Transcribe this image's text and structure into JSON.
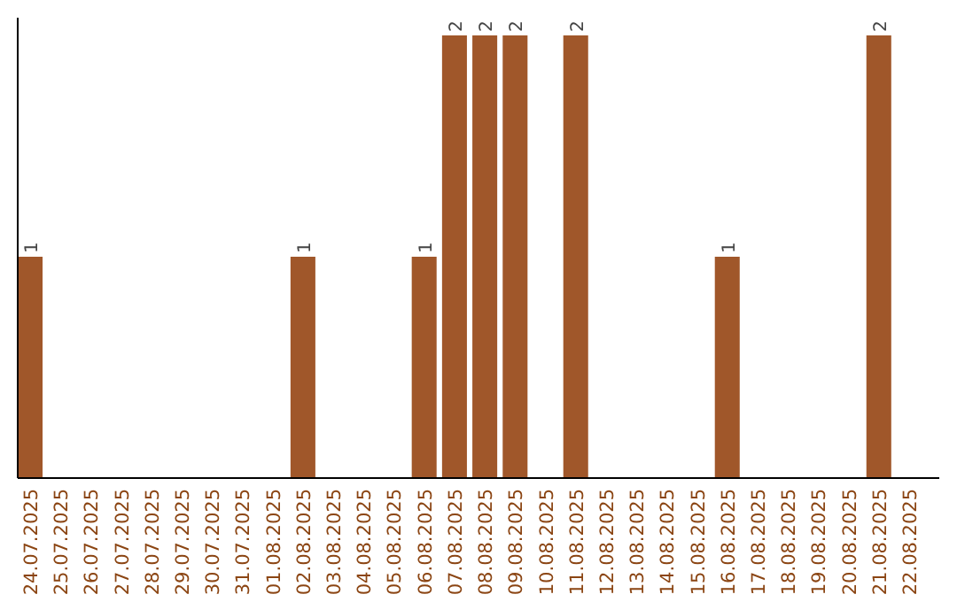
{
  "chart_data": {
    "type": "bar",
    "categories": [
      "24.07.2025",
      "25.07.2025",
      "26.07.2025",
      "27.07.2025",
      "28.07.2025",
      "29.07.2025",
      "30.07.2025",
      "31.07.2025",
      "01.08.2025",
      "02.08.2025",
      "03.08.2025",
      "04.08.2025",
      "05.08.2025",
      "06.08.2025",
      "07.08.2025",
      "08.08.2025",
      "09.08.2025",
      "10.08.2025",
      "11.08.2025",
      "12.08.2025",
      "13.08.2025",
      "14.08.2025",
      "15.08.2025",
      "16.08.2025",
      "17.08.2025",
      "18.08.2025",
      "19.08.2025",
      "20.08.2025",
      "21.08.2025",
      "22.08.2025"
    ],
    "values": [
      1,
      0,
      0,
      0,
      0,
      0,
      0,
      0,
      0,
      1,
      0,
      0,
      0,
      1,
      2,
      2,
      2,
      0,
      2,
      0,
      0,
      0,
      0,
      1,
      0,
      0,
      0,
      0,
      2,
      0
    ],
    "value_labels": [
      "1",
      null,
      null,
      null,
      null,
      null,
      null,
      null,
      null,
      "1",
      null,
      null,
      null,
      "1",
      "2",
      "2",
      "2",
      null,
      "2",
      null,
      null,
      null,
      null,
      "1",
      null,
      null,
      null,
      null,
      "2",
      null
    ],
    "color": "#a0572a",
    "ylim": [
      0,
      2.08
    ],
    "tick_labels": "x"
  }
}
